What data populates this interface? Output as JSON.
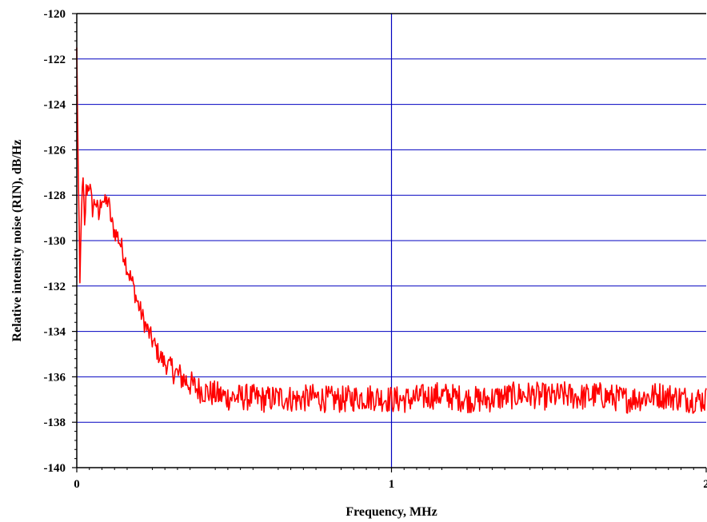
{
  "chart_data": {
    "type": "line",
    "xlabel": "Frequency, MHz",
    "ylabel": "Relative intensity noise (RIN), dB/Hz",
    "xlim": [
      0,
      2
    ],
    "ylim": [
      -140,
      -120
    ],
    "x_ticks": [
      0,
      1,
      2
    ],
    "x_tick_labels": [
      "0",
      "1",
      "2"
    ],
    "y_ticks": [
      -120,
      -122,
      -124,
      -126,
      -128,
      -130,
      -132,
      -134,
      -136,
      -138,
      -140
    ],
    "y_tick_labels": [
      "-120",
      "-122",
      "-124",
      "-126",
      "-128",
      "-130",
      "-132",
      "-134",
      "-136",
      "-138",
      "-140"
    ],
    "grid": {
      "horizontal": true,
      "vertical_at_x": 1,
      "color": "#0000c0"
    },
    "series_color": "#ff0000",
    "series": [
      {
        "x": [
          0.0,
          0.005,
          0.01,
          0.015,
          0.02,
          0.025,
          0.03,
          0.04,
          0.05,
          0.06,
          0.07,
          0.08,
          0.09,
          0.1,
          0.11,
          0.12,
          0.13,
          0.14,
          0.15,
          0.16,
          0.17,
          0.18,
          0.19,
          0.2,
          0.22,
          0.24,
          0.26,
          0.28,
          0.3,
          0.32,
          0.34,
          0.36,
          0.38,
          0.4,
          0.42,
          0.45,
          0.48,
          0.5,
          0.55,
          0.6,
          0.65,
          0.7,
          0.75,
          0.8,
          0.85,
          0.9,
          0.95,
          1.0,
          1.05,
          1.1,
          1.15,
          1.2,
          1.25,
          1.3,
          1.35,
          1.4,
          1.45,
          1.5,
          1.55,
          1.6,
          1.65,
          1.7,
          1.75,
          1.8,
          1.85,
          1.9,
          1.95,
          2.0
        ],
        "y": [
          -121.5,
          -127.5,
          -132.0,
          -128.5,
          -127.4,
          -129.5,
          -127.8,
          -127.5,
          -128.6,
          -128.2,
          -129.0,
          -128.0,
          -128.4,
          -128.2,
          -129.2,
          -129.6,
          -129.8,
          -130.2,
          -130.6,
          -131.2,
          -131.6,
          -132.0,
          -132.6,
          -133.0,
          -133.8,
          -134.4,
          -135.0,
          -135.4,
          -135.6,
          -135.9,
          -136.1,
          -136.3,
          -136.5,
          -136.6,
          -136.7,
          -136.8,
          -136.9,
          -136.9,
          -136.9,
          -137.0,
          -136.9,
          -137.0,
          -136.9,
          -137.0,
          -137.0,
          -136.9,
          -136.9,
          -137.0,
          -137.0,
          -136.9,
          -136.8,
          -136.9,
          -137.0,
          -137.0,
          -136.9,
          -136.8,
          -136.8,
          -136.9,
          -136.8,
          -136.9,
          -136.8,
          -136.9,
          -137.0,
          -136.9,
          -136.8,
          -136.9,
          -137.0,
          -137.0
        ]
      }
    ]
  }
}
